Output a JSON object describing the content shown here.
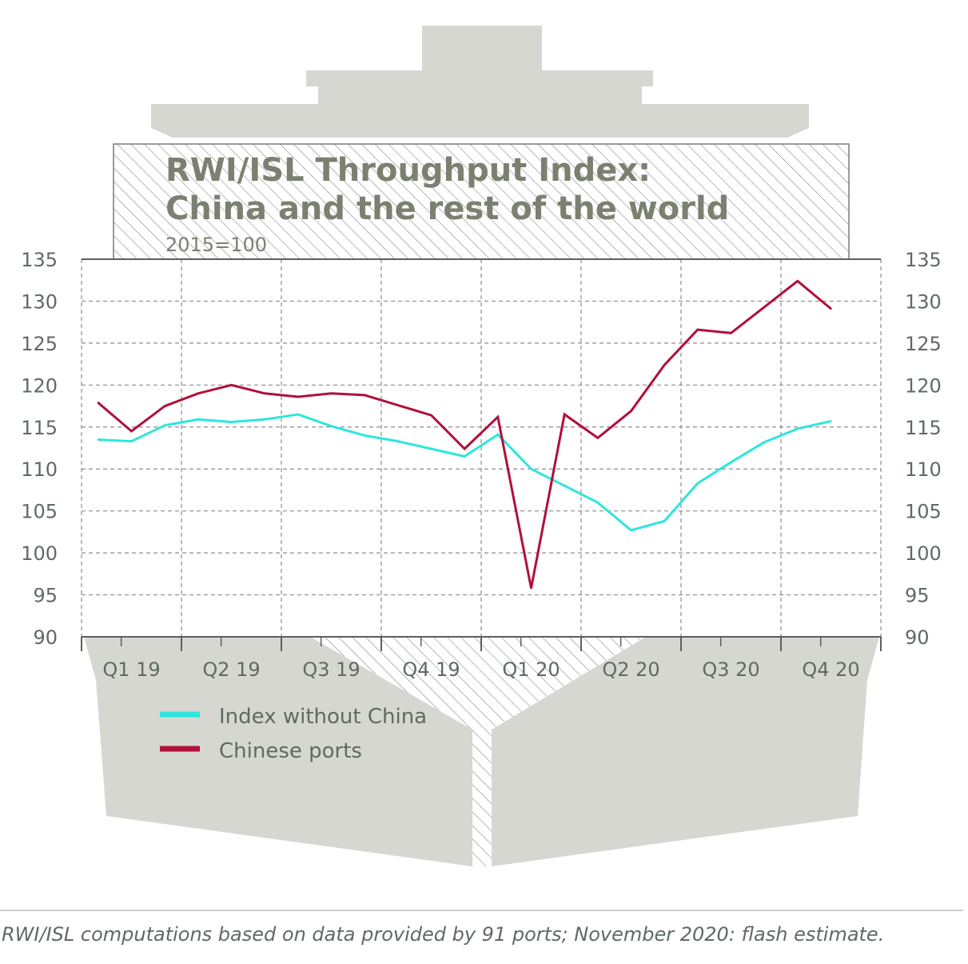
{
  "chart_data": {
    "type": "line",
    "title_line1": "RWI/ISL Throughput Index:",
    "title_line2": "China and the rest of the world",
    "subtitle": "2015=100",
    "quarter_labels": [
      "Q1 19",
      "Q2 19",
      "Q3 19",
      "Q4 19",
      "Q1 20",
      "Q2 20",
      "Q3 20",
      "Q4 20"
    ],
    "x": [
      "Jan 2019",
      "Feb 2019",
      "Mar 2019",
      "Apr 2019",
      "May 2019",
      "Jun 2019",
      "Jul 2019",
      "Aug 2019",
      "Sep 2019",
      "Oct 2019",
      "Nov 2019",
      "Dec 2019",
      "Jan 2020",
      "Feb 2020",
      "Mar 2020",
      "Apr 2020",
      "May 2020",
      "Jun 2020",
      "Jul 2020",
      "Aug 2020",
      "Sep 2020",
      "Oct 2020",
      "Nov 2020"
    ],
    "ylim": [
      90,
      135
    ],
    "yticks": [
      90,
      95,
      100,
      105,
      110,
      115,
      120,
      125,
      130,
      135
    ],
    "grid": true,
    "series": [
      {
        "name": "Index without China",
        "color": "#2ee6dc",
        "values": [
          113.5,
          113.3,
          115.2,
          115.9,
          115.6,
          115.9,
          116.5,
          115.1,
          114.0,
          113.3,
          112.4,
          111.5,
          114.1,
          110.0,
          108.0,
          106.0,
          102.7,
          103.8,
          108.3,
          110.8,
          113.2,
          114.8,
          115.7
        ]
      },
      {
        "name": "Chinese ports",
        "color": "#b0103a",
        "values": [
          117.9,
          114.5,
          117.5,
          119.0,
          120.0,
          119.0,
          118.6,
          119.0,
          118.8,
          117.6,
          116.4,
          112.4,
          116.2,
          95.8,
          116.5,
          113.7,
          116.9,
          122.4,
          126.6,
          126.2,
          129.3,
          132.4,
          129.1
        ]
      }
    ],
    "source": "RWI/ISL computations based on data provided by 91 ports; November 2020: flash estimate."
  }
}
